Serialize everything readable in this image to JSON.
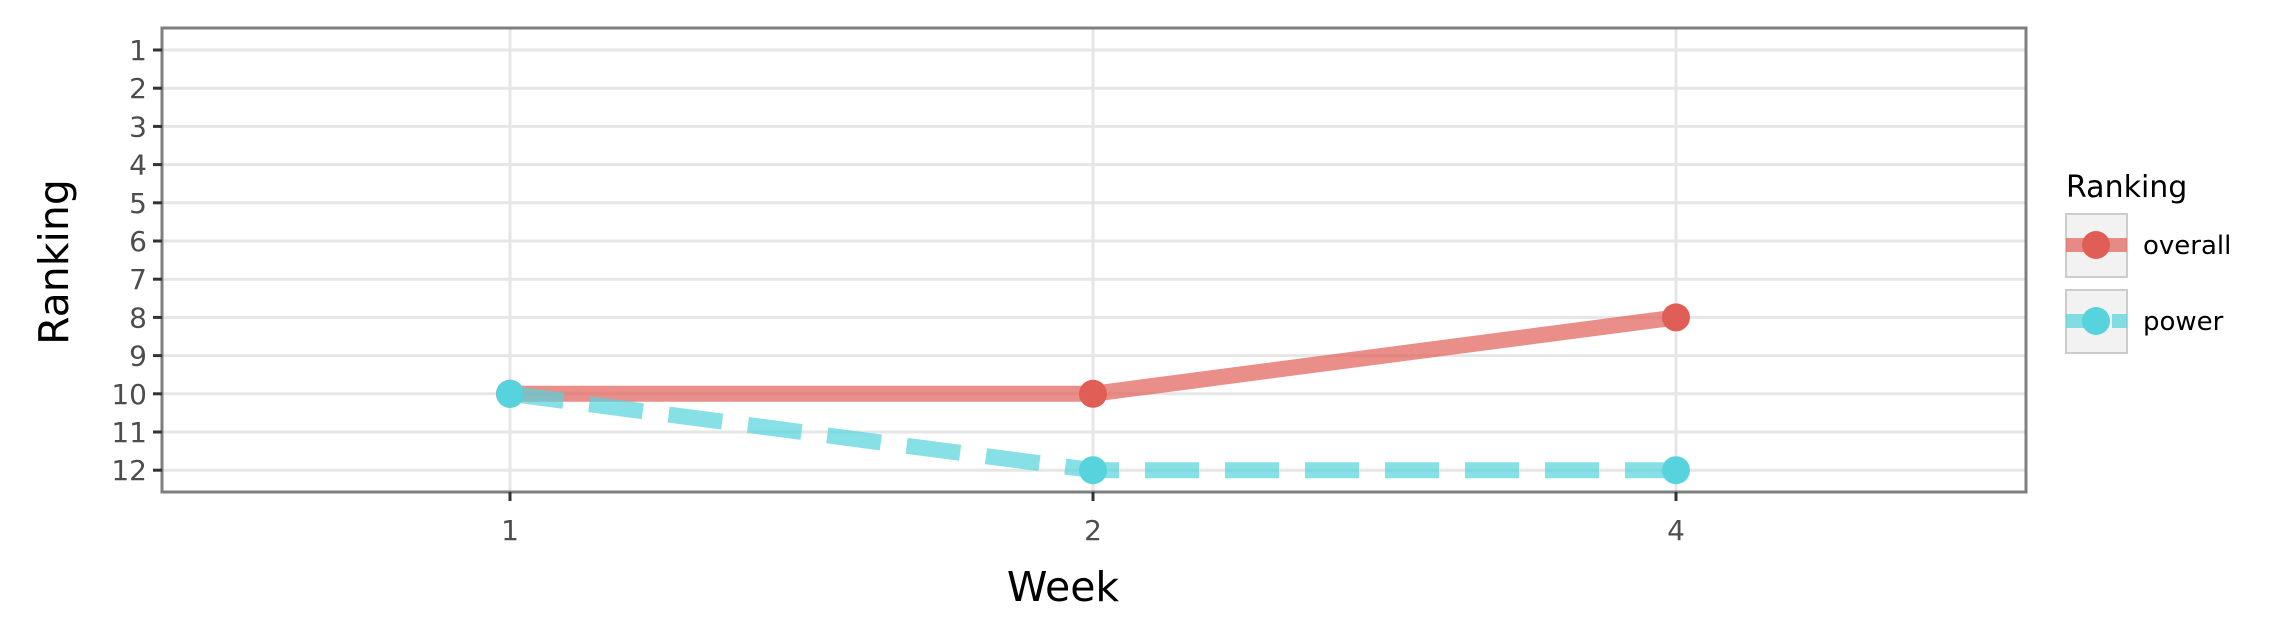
{
  "chart_data": {
    "type": "line",
    "title": "",
    "xlabel": "Week",
    "ylabel": "Ranking",
    "categories": [
      "1",
      "2",
      "4"
    ],
    "y_ticks": [
      "1",
      "2",
      "3",
      "4",
      "5",
      "6",
      "7",
      "8",
      "9",
      "10",
      "11",
      "12"
    ],
    "ylim": [
      12,
      1
    ],
    "y_reversed": true,
    "grid": true,
    "legend": {
      "title": "Ranking",
      "position": "right",
      "items": [
        {
          "label": "overall",
          "color": "#e05e55"
        },
        {
          "label": "power",
          "color": "#56d3dd"
        }
      ]
    },
    "series": [
      {
        "name": "overall",
        "values": [
          10,
          10,
          8
        ],
        "color": "#e05e55",
        "style": "solid"
      },
      {
        "name": "power",
        "values": [
          10,
          12,
          12
        ],
        "color": "#56d3dd",
        "style": "dashed"
      }
    ]
  }
}
